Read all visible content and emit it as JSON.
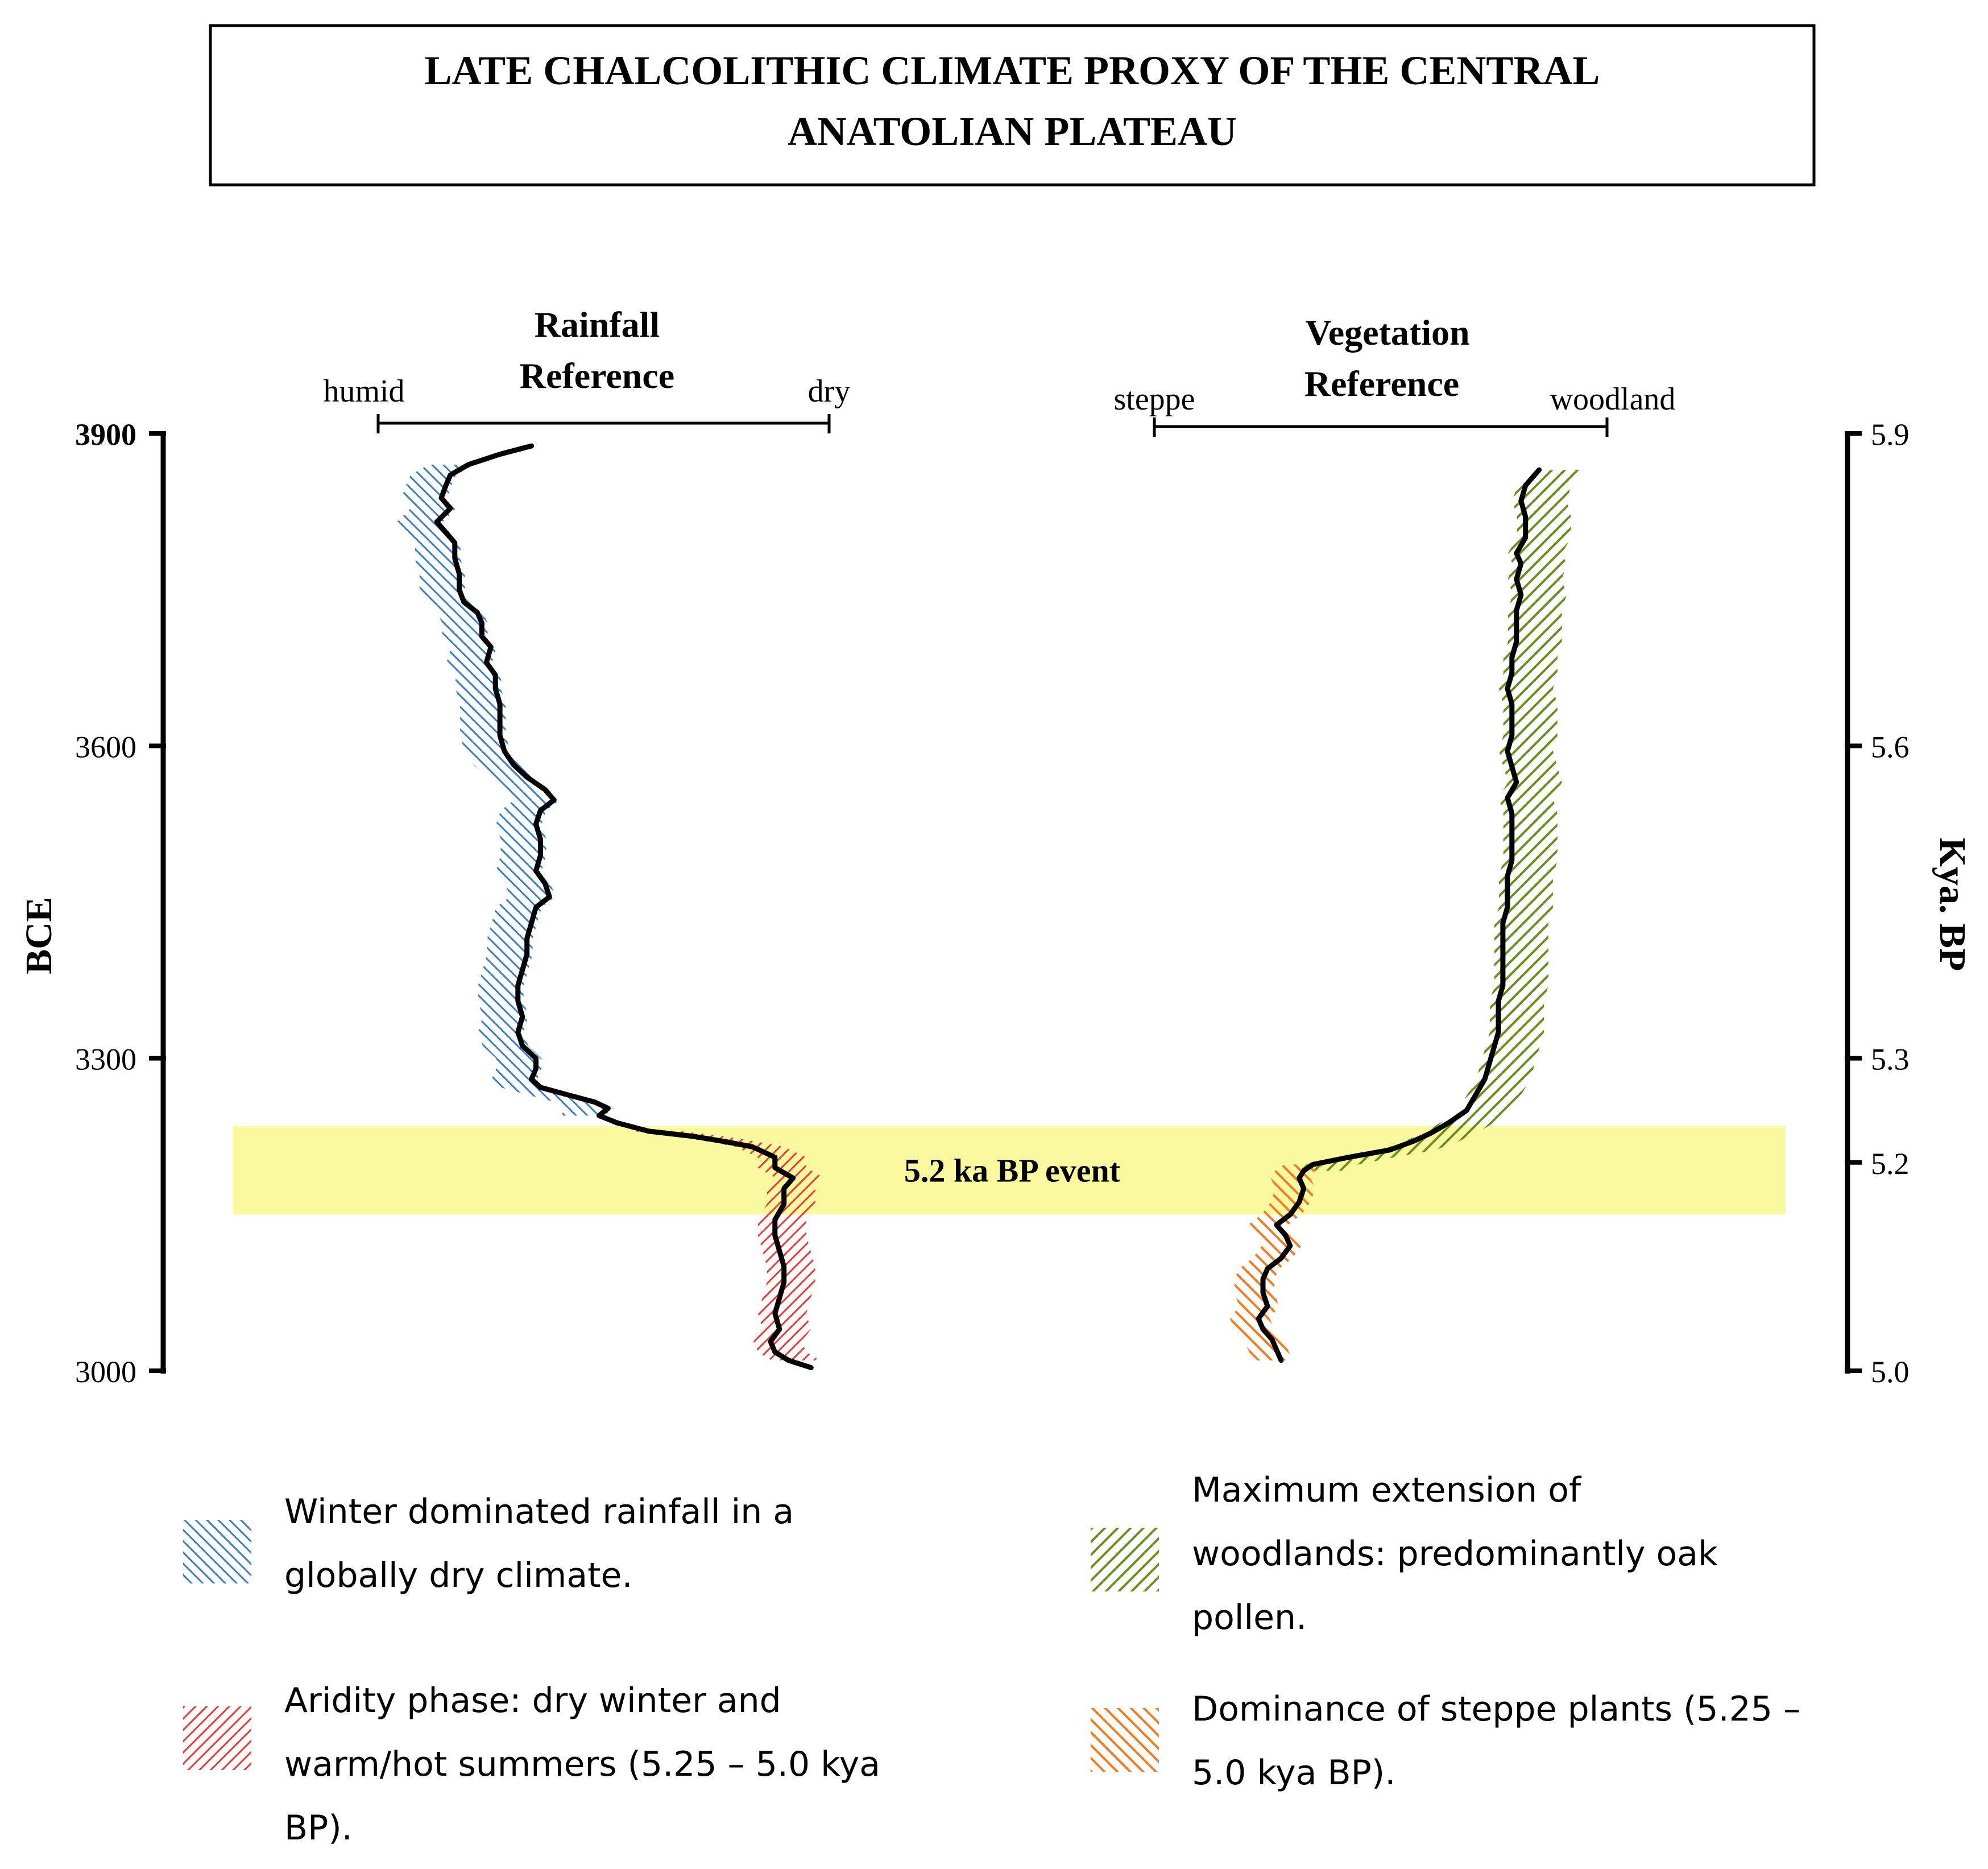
{
  "chart_data": {
    "type": "line",
    "title": "LATE CHALCOLITHIC CLIMATE PROXY OF THE CENTRAL ANATOLIAN PLATEAU",
    "title_lines": [
      "LATE CHALCOLITHIC CLIMATE PROXY OF THE CENTRAL",
      "ANATOLIAN PLATEAU"
    ],
    "left_axis": {
      "label": "BCE",
      "ticks": [
        "3900",
        "3600",
        "3300",
        "3000"
      ],
      "tick_values": [
        3900,
        3600,
        3300,
        3000
      ],
      "range": [
        3000,
        3900
      ]
    },
    "right_axis": {
      "label": "Kya. BP",
      "ticks": [
        "5.9",
        "5.6",
        "5.3",
        "5.2",
        "5.0"
      ],
      "tick_values": [
        5.9,
        5.6,
        5.3,
        5.2,
        5.0
      ],
      "range": [
        5.0,
        5.9
      ]
    },
    "event_band": {
      "label": "5.2 ka BP event",
      "from_bce": 3150,
      "to_bce": 3235,
      "color": "#fbf9a0"
    },
    "rainfall": {
      "title_lines": [
        "Rainfall",
        "Reference"
      ],
      "left_label": "humid",
      "right_label": "dry",
      "scale": [
        0,
        1
      ],
      "series": [
        {
          "bce": 3888,
          "v": 0.34
        },
        {
          "bce": 3880,
          "v": 0.27
        },
        {
          "bce": 3870,
          "v": 0.2
        },
        {
          "bce": 3860,
          "v": 0.16
        },
        {
          "bce": 3850,
          "v": 0.15
        },
        {
          "bce": 3838,
          "v": 0.14
        },
        {
          "bce": 3828,
          "v": 0.16
        },
        {
          "bce": 3815,
          "v": 0.13
        },
        {
          "bce": 3805,
          "v": 0.15
        },
        {
          "bce": 3795,
          "v": 0.17
        },
        {
          "bce": 3780,
          "v": 0.17
        },
        {
          "bce": 3765,
          "v": 0.18
        },
        {
          "bce": 3750,
          "v": 0.18
        },
        {
          "bce": 3738,
          "v": 0.19
        },
        {
          "bce": 3728,
          "v": 0.22
        },
        {
          "bce": 3718,
          "v": 0.23
        },
        {
          "bce": 3705,
          "v": 0.23
        },
        {
          "bce": 3695,
          "v": 0.25
        },
        {
          "bce": 3680,
          "v": 0.24
        },
        {
          "bce": 3668,
          "v": 0.26
        },
        {
          "bce": 3655,
          "v": 0.26
        },
        {
          "bce": 3640,
          "v": 0.27
        },
        {
          "bce": 3625,
          "v": 0.27
        },
        {
          "bce": 3610,
          "v": 0.27
        },
        {
          "bce": 3595,
          "v": 0.28
        },
        {
          "bce": 3582,
          "v": 0.3
        },
        {
          "bce": 3570,
          "v": 0.33
        },
        {
          "bce": 3558,
          "v": 0.37
        },
        {
          "bce": 3548,
          "v": 0.39
        },
        {
          "bce": 3538,
          "v": 0.36
        },
        {
          "bce": 3525,
          "v": 0.35
        },
        {
          "bce": 3510,
          "v": 0.36
        },
        {
          "bce": 3495,
          "v": 0.36
        },
        {
          "bce": 3480,
          "v": 0.35
        },
        {
          "bce": 3468,
          "v": 0.37
        },
        {
          "bce": 3455,
          "v": 0.38
        },
        {
          "bce": 3445,
          "v": 0.35
        },
        {
          "bce": 3430,
          "v": 0.34
        },
        {
          "bce": 3415,
          "v": 0.33
        },
        {
          "bce": 3400,
          "v": 0.33
        },
        {
          "bce": 3385,
          "v": 0.32
        },
        {
          "bce": 3370,
          "v": 0.31
        },
        {
          "bce": 3355,
          "v": 0.31
        },
        {
          "bce": 3340,
          "v": 0.32
        },
        {
          "bce": 3325,
          "v": 0.31
        },
        {
          "bce": 3312,
          "v": 0.32
        },
        {
          "bce": 3300,
          "v": 0.35
        },
        {
          "bce": 3290,
          "v": 0.35
        },
        {
          "bce": 3280,
          "v": 0.34
        },
        {
          "bce": 3272,
          "v": 0.36
        },
        {
          "bce": 3265,
          "v": 0.42
        },
        {
          "bce": 3258,
          "v": 0.48
        },
        {
          "bce": 3252,
          "v": 0.51
        },
        {
          "bce": 3245,
          "v": 0.49
        },
        {
          "bce": 3238,
          "v": 0.53
        },
        {
          "bce": 3230,
          "v": 0.6
        },
        {
          "bce": 3225,
          "v": 0.7
        },
        {
          "bce": 3220,
          "v": 0.77
        },
        {
          "bce": 3215,
          "v": 0.83
        },
        {
          "bce": 3205,
          "v": 0.88
        },
        {
          "bce": 3195,
          "v": 0.88
        },
        {
          "bce": 3185,
          "v": 0.92
        },
        {
          "bce": 3175,
          "v": 0.9
        },
        {
          "bce": 3160,
          "v": 0.9
        },
        {
          "bce": 3145,
          "v": 0.88
        },
        {
          "bce": 3130,
          "v": 0.88
        },
        {
          "bce": 3115,
          "v": 0.89
        },
        {
          "bce": 3100,
          "v": 0.9
        },
        {
          "bce": 3085,
          "v": 0.9
        },
        {
          "bce": 3070,
          "v": 0.89
        },
        {
          "bce": 3055,
          "v": 0.88
        },
        {
          "bce": 3040,
          "v": 0.89
        },
        {
          "bce": 3028,
          "v": 0.87
        },
        {
          "bce": 3018,
          "v": 0.88
        },
        {
          "bce": 3010,
          "v": 0.91
        },
        {
          "bce": 3003,
          "v": 0.96
        }
      ],
      "humid_band": {
        "from_bce": 3240,
        "to_bce": 3872,
        "color": "#3b7ec2"
      },
      "arid_band": {
        "from_bce": 3005,
        "to_bce": 3235,
        "color": "#e83a3a"
      }
    },
    "vegetation": {
      "title_lines": [
        "Vegetation",
        "Reference"
      ],
      "left_label": "steppe",
      "right_label": "woodland",
      "scale": [
        0,
        1
      ],
      "series": [
        {
          "bce": 3865,
          "v": 0.85
        },
        {
          "bce": 3850,
          "v": 0.82
        },
        {
          "bce": 3835,
          "v": 0.81
        },
        {
          "bce": 3820,
          "v": 0.82
        },
        {
          "bce": 3800,
          "v": 0.82
        },
        {
          "bce": 3785,
          "v": 0.8
        },
        {
          "bce": 3775,
          "v": 0.81
        },
        {
          "bce": 3760,
          "v": 0.8
        },
        {
          "bce": 3745,
          "v": 0.81
        },
        {
          "bce": 3730,
          "v": 0.8
        },
        {
          "bce": 3715,
          "v": 0.8
        },
        {
          "bce": 3700,
          "v": 0.8
        },
        {
          "bce": 3685,
          "v": 0.79
        },
        {
          "bce": 3670,
          "v": 0.79
        },
        {
          "bce": 3655,
          "v": 0.78
        },
        {
          "bce": 3640,
          "v": 0.79
        },
        {
          "bce": 3625,
          "v": 0.79
        },
        {
          "bce": 3610,
          "v": 0.79
        },
        {
          "bce": 3595,
          "v": 0.78
        },
        {
          "bce": 3580,
          "v": 0.79
        },
        {
          "bce": 3565,
          "v": 0.8
        },
        {
          "bce": 3550,
          "v": 0.78
        },
        {
          "bce": 3535,
          "v": 0.79
        },
        {
          "bce": 3520,
          "v": 0.79
        },
        {
          "bce": 3505,
          "v": 0.79
        },
        {
          "bce": 3490,
          "v": 0.79
        },
        {
          "bce": 3475,
          "v": 0.78
        },
        {
          "bce": 3460,
          "v": 0.78
        },
        {
          "bce": 3445,
          "v": 0.78
        },
        {
          "bce": 3430,
          "v": 0.77
        },
        {
          "bce": 3415,
          "v": 0.77
        },
        {
          "bce": 3400,
          "v": 0.77
        },
        {
          "bce": 3385,
          "v": 0.77
        },
        {
          "bce": 3370,
          "v": 0.77
        },
        {
          "bce": 3355,
          "v": 0.76
        },
        {
          "bce": 3340,
          "v": 0.76
        },
        {
          "bce": 3325,
          "v": 0.76
        },
        {
          "bce": 3310,
          "v": 0.75
        },
        {
          "bce": 3295,
          "v": 0.74
        },
        {
          "bce": 3280,
          "v": 0.73
        },
        {
          "bce": 3265,
          "v": 0.71
        },
        {
          "bce": 3250,
          "v": 0.69
        },
        {
          "bce": 3238,
          "v": 0.65
        },
        {
          "bce": 3228,
          "v": 0.61
        },
        {
          "bce": 3220,
          "v": 0.57
        },
        {
          "bce": 3212,
          "v": 0.52
        },
        {
          "bce": 3205,
          "v": 0.43
        },
        {
          "bce": 3198,
          "v": 0.35
        },
        {
          "bce": 3192,
          "v": 0.33
        },
        {
          "bce": 3185,
          "v": 0.32
        },
        {
          "bce": 3175,
          "v": 0.33
        },
        {
          "bce": 3162,
          "v": 0.32
        },
        {
          "bce": 3150,
          "v": 0.3
        },
        {
          "bce": 3140,
          "v": 0.27
        },
        {
          "bce": 3130,
          "v": 0.29
        },
        {
          "bce": 3120,
          "v": 0.3
        },
        {
          "bce": 3108,
          "v": 0.28
        },
        {
          "bce": 3098,
          "v": 0.25
        },
        {
          "bce": 3088,
          "v": 0.24
        },
        {
          "bce": 3075,
          "v": 0.24
        },
        {
          "bce": 3062,
          "v": 0.25
        },
        {
          "bce": 3050,
          "v": 0.23
        },
        {
          "bce": 3040,
          "v": 0.24
        },
        {
          "bce": 3030,
          "v": 0.26
        },
        {
          "bce": 3020,
          "v": 0.27
        },
        {
          "bce": 3010,
          "v": 0.28
        }
      ],
      "woodland_band": {
        "from_bce": 3190,
        "to_bce": 3870,
        "color": "#6b8e23"
      },
      "steppe_band": {
        "from_bce": 3000,
        "to_bce": 3200,
        "color": "#f07c26"
      }
    }
  },
  "legend": [
    {
      "text": "Winter dominated rainfall in a globally dry climate.",
      "lines": [
        "Winter dominated rainfall in a",
        "globally dry climate."
      ],
      "color": "#3b7ec2"
    },
    {
      "text": "Aridity phase: dry winter and warm/hot summers (5.25 – 5.0 kya BP).",
      "lines": [
        "Aridity phase: dry winter and",
        "warm/hot summers (5.25 – 5.0 kya",
        "BP)."
      ],
      "color": "#e83a3a"
    },
    {
      "text": "Maximum extension of woodlands: predominantly oak pollen.",
      "lines": [
        "Maximum extension of",
        "woodlands: predominantly oak",
        "pollen."
      ],
      "color": "#6b8e23"
    },
    {
      "text": "Dominance of steppe plants (5.25 – 5.0 kya BP).",
      "lines": [
        "Dominance of steppe plants (5.25 –",
        "5.0 kya BP)."
      ],
      "color": "#f07c26"
    }
  ]
}
